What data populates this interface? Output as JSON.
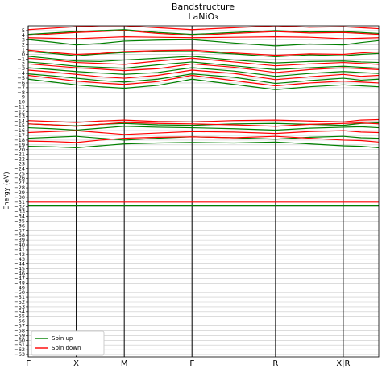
{
  "chart_data": {
    "type": "bandstructure",
    "title": "Bandstructure",
    "subtitle": "LaNiO₃",
    "ylabel": "Energy (eV)",
    "x": [
      0,
      0.5,
      1,
      1.5,
      2,
      2.7,
      3.41,
      4.28,
      5.15,
      5.86,
      6.56,
      6.93,
      7.3
    ],
    "xlim": [
      0,
      7.3
    ],
    "xticks": [
      {
        "value": 0,
        "label": "Γ"
      },
      {
        "value": 1,
        "label": "X"
      },
      {
        "value": 2,
        "label": "M"
      },
      {
        "value": 3.41,
        "label": "Γ"
      },
      {
        "value": 5.15,
        "label": "R"
      },
      {
        "value": 6.56,
        "label": "X|R"
      }
    ],
    "ylim": [
      -63.5,
      6
    ],
    "yticks": [
      {
        "value": -63,
        "label": "−63"
      },
      {
        "value": -62,
        "label": "−62"
      },
      {
        "value": -61,
        "label": "−61"
      },
      {
        "value": -60,
        "label": "−60"
      },
      {
        "value": -59,
        "label": "−59"
      },
      {
        "value": -58,
        "label": "−58"
      },
      {
        "value": -57,
        "label": "−57"
      },
      {
        "value": -56,
        "label": "−56"
      },
      {
        "value": -55,
        "label": "−55"
      },
      {
        "value": -54,
        "label": "−54"
      },
      {
        "value": -53,
        "label": "−53"
      },
      {
        "value": -52,
        "label": "−52"
      },
      {
        "value": -51,
        "label": "−51"
      },
      {
        "value": -50,
        "label": "−50"
      },
      {
        "value": -49,
        "label": "−49"
      },
      {
        "value": -48,
        "label": "−48"
      },
      {
        "value": -47,
        "label": "−47"
      },
      {
        "value": -46,
        "label": "−46"
      },
      {
        "value": -45,
        "label": "−45"
      },
      {
        "value": -44,
        "label": "−44"
      },
      {
        "value": -43,
        "label": "−43"
      },
      {
        "value": -42,
        "label": "−42"
      },
      {
        "value": -41,
        "label": "−41"
      },
      {
        "value": -40,
        "label": "−40"
      },
      {
        "value": -39,
        "label": "−39"
      },
      {
        "value": -38,
        "label": "−38"
      },
      {
        "value": -37,
        "label": "−37"
      },
      {
        "value": -36,
        "label": "−36"
      },
      {
        "value": -35,
        "label": "−35"
      },
      {
        "value": -34,
        "label": "−34"
      },
      {
        "value": -33,
        "label": "−33"
      },
      {
        "value": -32,
        "label": "−32"
      },
      {
        "value": -31,
        "label": "−31"
      },
      {
        "value": -30,
        "label": "−30"
      },
      {
        "value": -29,
        "label": "−29"
      },
      {
        "value": -28,
        "label": "−28"
      },
      {
        "value": -27,
        "label": "−27"
      },
      {
        "value": -26,
        "label": "−26"
      },
      {
        "value": -25,
        "label": "−25"
      },
      {
        "value": -24,
        "label": "−24"
      },
      {
        "value": -23,
        "label": "−23"
      },
      {
        "value": -22,
        "label": "−22"
      },
      {
        "value": -21,
        "label": "−21"
      },
      {
        "value": -20,
        "label": "−20"
      },
      {
        "value": -19,
        "label": "−19"
      },
      {
        "value": -18,
        "label": "−18"
      },
      {
        "value": -17,
        "label": "−17"
      },
      {
        "value": -16,
        "label": "−16"
      },
      {
        "value": -15,
        "label": "−15"
      },
      {
        "value": -14,
        "label": "−14"
      },
      {
        "value": -13,
        "label": "−13"
      },
      {
        "value": -12,
        "label": "−12"
      },
      {
        "value": -11,
        "label": "−11"
      },
      {
        "value": -10,
        "label": "−10"
      },
      {
        "value": -9,
        "label": "−9"
      },
      {
        "value": -8,
        "label": "−8"
      },
      {
        "value": -7,
        "label": "−7"
      },
      {
        "value": -6,
        "label": "−6"
      },
      {
        "value": -5,
        "label": "−5"
      },
      {
        "value": -4,
        "label": "−4"
      },
      {
        "value": -3,
        "label": "−3"
      },
      {
        "value": -2,
        "label": "−2"
      },
      {
        "value": -1,
        "label": "−1"
      },
      0,
      1,
      2,
      3,
      4,
      5
    ],
    "grid": true,
    "legend": "lower left",
    "series": [
      {
        "name": "Spin up",
        "color": "green",
        "bands": [
          [
            -31.8,
            -31.8,
            -31.8,
            -31.8,
            -31.8,
            -31.8,
            -31.8,
            -31.8,
            -31.8,
            -31.8,
            -31.8,
            -31.8,
            -31.8
          ],
          [
            -19.3,
            -19.4,
            -19.6,
            -19.2,
            -18.8,
            -18.6,
            -18.5,
            -18.6,
            -18.4,
            -18.8,
            -19.2,
            -19.3,
            -19.6
          ],
          [
            -17.6,
            -17.4,
            -17.2,
            -17.6,
            -18,
            -17.6,
            -17.3,
            -17.5,
            -17.8,
            -17.4,
            -17.2,
            -17.5,
            -17.6
          ],
          [
            -15.4,
            -15.6,
            -15.9,
            -15.5,
            -15.1,
            -15.3,
            -15.4,
            -15.6,
            -15.9,
            -15.5,
            -15.3,
            -15.2,
            -15.4
          ],
          [
            -14.6,
            -14.8,
            -15,
            -14.7,
            -14.5,
            -14.8,
            -14.9,
            -14.6,
            -14.5,
            -14.7,
            -14.9,
            -14.5,
            -14.4
          ],
          [
            -5.2,
            -5.8,
            -6.4,
            -6.8,
            -7.1,
            -6.5,
            -5.2,
            -6.3,
            -7.4,
            -6.8,
            -6.4,
            -6.6,
            -6.8
          ],
          [
            -4.1,
            -4.5,
            -5,
            -5.5,
            -5.8,
            -5.2,
            -4.1,
            -4.8,
            -6.1,
            -5.5,
            -5,
            -5.4,
            -5.2
          ],
          [
            -2.8,
            -3.2,
            -3.6,
            -3.9,
            -4.2,
            -3.8,
            -2.8,
            -3.5,
            -4.6,
            -4,
            -3.6,
            -3.8,
            -4
          ],
          [
            -1.6,
            -2,
            -2.5,
            -2.7,
            -2.9,
            -2.2,
            -1.6,
            -2.4,
            -3.2,
            -2.8,
            -2.5,
            -2.7,
            -2.9
          ],
          [
            -0.4,
            -0.9,
            -1.4,
            -1.5,
            -1.2,
            -0.8,
            -0.4,
            -1.2,
            -1.8,
            -1.5,
            -1.4,
            -1.6,
            -1.7
          ],
          [
            0.6,
            0.2,
            -0.3,
            0.1,
            0.4,
            0.6,
            0.6,
            0.1,
            -0.5,
            -0.1,
            -0.3,
            0,
            0.2
          ],
          [
            3.1,
            2.6,
            2,
            2.3,
            2.8,
            3,
            3.1,
            2.4,
            1.8,
            2.2,
            2,
            2.5,
            2.9
          ],
          [
            4.2,
            4.5,
            4.8,
            5,
            5.2,
            4.6,
            4.2,
            4.6,
            5,
            4.7,
            4.8,
            4.6,
            4.4
          ]
        ]
      },
      {
        "name": "Spin down",
        "color": "red",
        "bands": [
          [
            -31,
            -31,
            -31,
            -31,
            -31,
            -31,
            -31,
            -31,
            -31,
            -31,
            -31,
            -31,
            -31
          ],
          [
            -18.2,
            -18.3,
            -18.5,
            -18,
            -17.6,
            -17.4,
            -17.3,
            -17.5,
            -17.2,
            -17.6,
            -18,
            -18.1,
            -18.4
          ],
          [
            -16.4,
            -16.2,
            -16,
            -16.4,
            -16.8,
            -16.5,
            -16.2,
            -16.3,
            -16.6,
            -16.2,
            -16,
            -16.3,
            -16.4
          ],
          [
            -14.6,
            -14.8,
            -15.1,
            -14.7,
            -14.3,
            -14.5,
            -14.6,
            -14.8,
            -15.1,
            -14.7,
            -14.5,
            -14.4,
            -14.6
          ],
          [
            -13.9,
            -14.1,
            -14.3,
            -14,
            -13.8,
            -14.1,
            -14.2,
            -13.9,
            -13.8,
            -14,
            -14.2,
            -13.8,
            -13.7
          ],
          [
            -4.4,
            -5,
            -5.6,
            -6,
            -6.3,
            -5.7,
            -4.4,
            -5.5,
            -6.6,
            -6,
            -5.6,
            -5.8,
            -6
          ],
          [
            -3.3,
            -3.7,
            -4.2,
            -4.7,
            -5,
            -4.4,
            -3.3,
            -4,
            -5.3,
            -4.7,
            -4.2,
            -4.6,
            -4.4
          ],
          [
            -2,
            -2.4,
            -2.8,
            -3.1,
            -3.4,
            -3,
            -2,
            -2.7,
            -3.8,
            -3.2,
            -2.8,
            -3,
            -3.2
          ],
          [
            -0.8,
            -1.2,
            -1.7,
            -1.9,
            -2.1,
            -1.4,
            -0.8,
            -1.6,
            -2.4,
            -2,
            -1.7,
            -1.9,
            -2.1
          ],
          [
            0.9,
            0.4,
            0,
            0.2,
            0.6,
            0.8,
            0.9,
            0.3,
            -0.2,
            0.1,
            0,
            0.3,
            0.5
          ],
          [
            3.5,
            3.4,
            3.3,
            3.5,
            3.7,
            3.6,
            3.5,
            3.6,
            3.7,
            3.6,
            3.3,
            3.4,
            3.5
          ],
          [
            4,
            4.3,
            4.6,
            4.8,
            5,
            4.4,
            4,
            4.4,
            4.8,
            4.5,
            4.6,
            4.4,
            4.2
          ],
          [
            5.2,
            5.5,
            5.8,
            6,
            6,
            5.6,
            5.2,
            5.6,
            6,
            5.7,
            5.8,
            5.6,
            5.4
          ]
        ]
      }
    ]
  }
}
